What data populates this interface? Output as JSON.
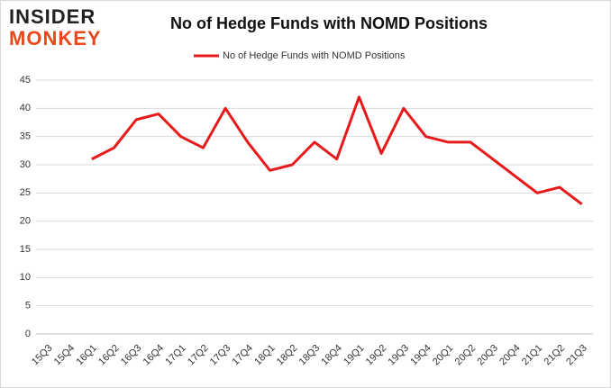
{
  "logo": {
    "line1": "INSIDER",
    "line2": "MONKEY"
  },
  "chart_data": {
    "type": "line",
    "title": "No of Hedge Funds with NOMD Positions",
    "categories": [
      "15Q3",
      "15Q4",
      "16Q1",
      "16Q2",
      "16Q3",
      "16Q4",
      "17Q1",
      "17Q2",
      "17Q3",
      "17Q4",
      "18Q1",
      "18Q2",
      "18Q3",
      "18Q4",
      "19Q1",
      "19Q2",
      "19Q3",
      "19Q4",
      "20Q1",
      "20Q2",
      "20Q3",
      "20Q4",
      "21Q1",
      "21Q2",
      "21Q3"
    ],
    "series": [
      {
        "name": "No of Hedge Funds with NOMD Positions",
        "color": "#e8191b",
        "values": [
          null,
          null,
          31,
          33,
          38,
          39,
          35,
          33,
          40,
          34,
          29,
          30,
          34,
          31,
          42,
          32,
          40,
          35,
          34,
          34,
          31,
          28,
          25,
          26,
          23
        ]
      }
    ],
    "ylim": [
      0,
      45
    ],
    "yticks": [
      0,
      5,
      10,
      15,
      20,
      25,
      30,
      35,
      40,
      45
    ],
    "grid": true,
    "legend": "top"
  }
}
